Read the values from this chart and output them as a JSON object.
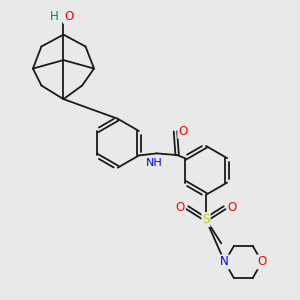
{
  "background_color": "#e8eaea",
  "atom_colors": {
    "C": "#1a1a1a",
    "N": "#0000ff",
    "O": "#ff0000",
    "S": "#cccc00",
    "H_label": "#008080"
  },
  "bond_color": "#1a1a1a",
  "bond_width": 1.3,
  "font_size_atom": 8.5
}
